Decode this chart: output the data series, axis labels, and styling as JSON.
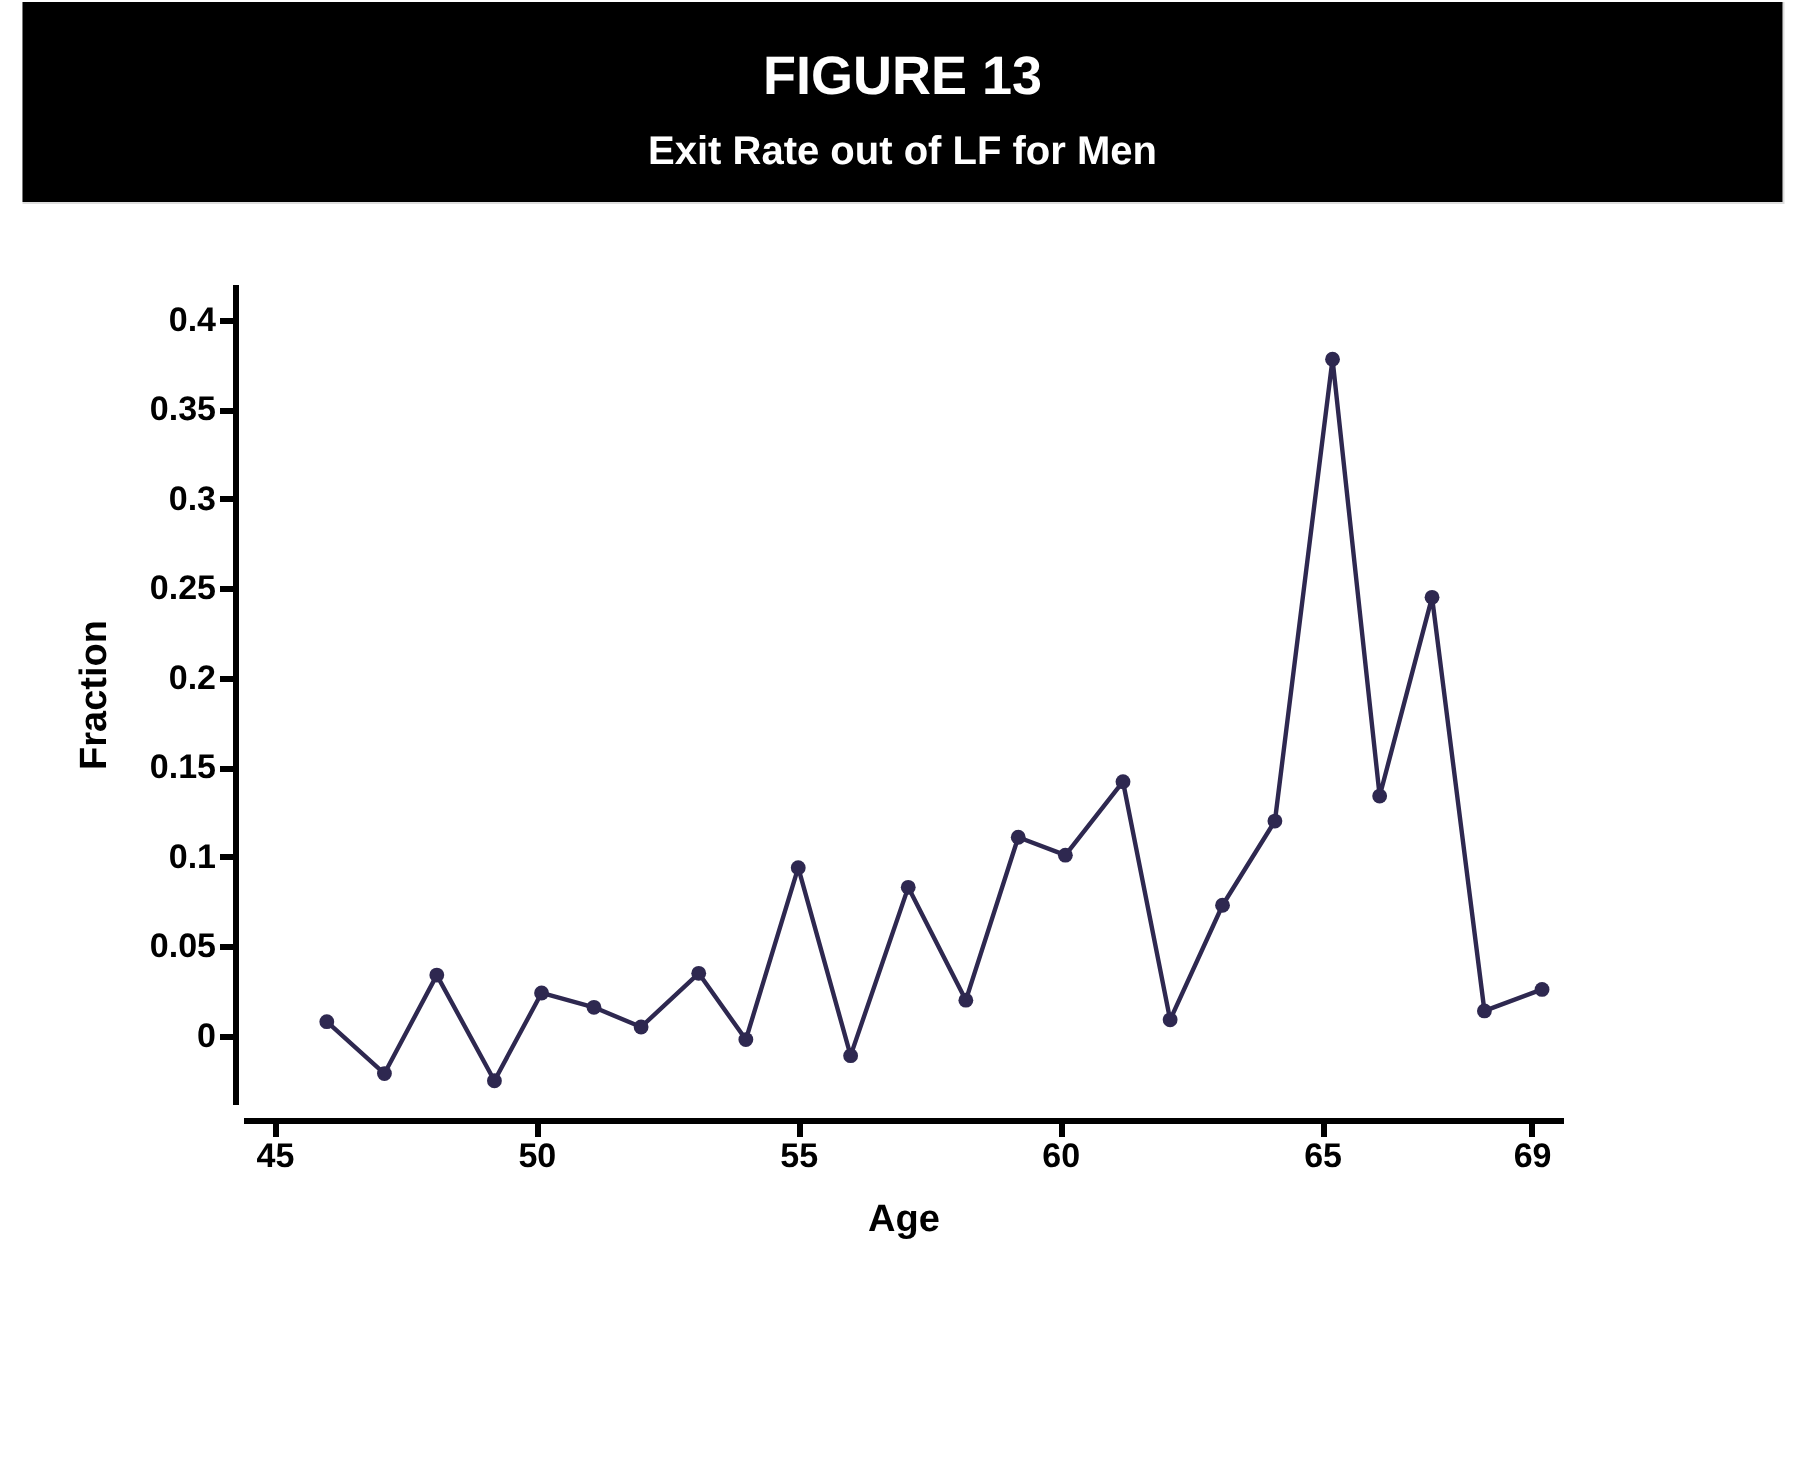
{
  "chart_data": {
    "type": "line",
    "title": "FIGURE 13",
    "subtitle": "Exit Rate out of LF for Men",
    "xlabel": "Age",
    "ylabel": "Fraction",
    "series": [
      {
        "color": "#2e2850",
        "x": [
          46.0,
          47.1,
          48.1,
          49.2,
          50.1,
          51.1,
          52.0,
          53.1,
          54.0,
          55.0,
          56.0,
          57.1,
          58.2,
          59.2,
          60.1,
          61.2,
          62.1,
          63.1,
          64.1,
          65.2,
          66.1,
          67.1,
          68.1,
          69.2
        ],
        "values": [
          0.008,
          -0.021,
          0.034,
          -0.025,
          0.024,
          0.016,
          0.005,
          0.035,
          -0.002,
          0.094,
          -0.011,
          0.083,
          0.02,
          0.111,
          0.101,
          0.142,
          0.009,
          0.073,
          0.12,
          0.378,
          0.134,
          0.245,
          0.014,
          0.026
        ]
      }
    ],
    "xlim": [
      44.4,
      69.6
    ],
    "ylim": [
      -0.038,
      0.42
    ],
    "xticks": [
      45,
      50,
      55,
      60,
      65,
      69
    ],
    "yticks": [
      0,
      0.05,
      0.1,
      0.15,
      0.2,
      0.25,
      0.3,
      0.35,
      0.4
    ],
    "marker": "circle",
    "line_style": "solid",
    "grid": false
  }
}
